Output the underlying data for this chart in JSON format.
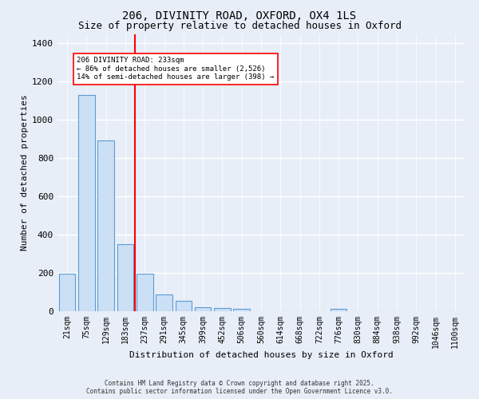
{
  "title": "206, DIVINITY ROAD, OXFORD, OX4 1LS",
  "subtitle": "Size of property relative to detached houses in Oxford",
  "xlabel": "Distribution of detached houses by size in Oxford",
  "ylabel": "Number of detached properties",
  "bar_color": "#cce0f5",
  "bar_edge_color": "#5b9bd5",
  "background_color": "#e8eef8",
  "grid_color": "#ffffff",
  "categories": [
    "21sqm",
    "75sqm",
    "129sqm",
    "183sqm",
    "237sqm",
    "291sqm",
    "345sqm",
    "399sqm",
    "452sqm",
    "506sqm",
    "560sqm",
    "614sqm",
    "668sqm",
    "722sqm",
    "776sqm",
    "830sqm",
    "884sqm",
    "938sqm",
    "992sqm",
    "1046sqm",
    "1100sqm"
  ],
  "values": [
    196,
    1130,
    893,
    352,
    196,
    88,
    55,
    22,
    18,
    12,
    0,
    0,
    0,
    0,
    14,
    0,
    0,
    0,
    0,
    0,
    0
  ],
  "ylim": [
    0,
    1450
  ],
  "yticks": [
    0,
    200,
    400,
    600,
    800,
    1000,
    1200,
    1400
  ],
  "vline_index": 3.5,
  "vline_label": "206 DIVINITY ROAD: 233sqm",
  "annotation_line1": "← 86% of detached houses are smaller (2,526)",
  "annotation_line2": "14% of semi-detached houses are larger (398) →",
  "footer1": "Contains HM Land Registry data © Crown copyright and database right 2025.",
  "footer2": "Contains public sector information licensed under the Open Government Licence v3.0.",
  "title_fontsize": 10,
  "subtitle_fontsize": 9,
  "tick_fontsize": 7,
  "xlabel_fontsize": 8,
  "ylabel_fontsize": 8
}
